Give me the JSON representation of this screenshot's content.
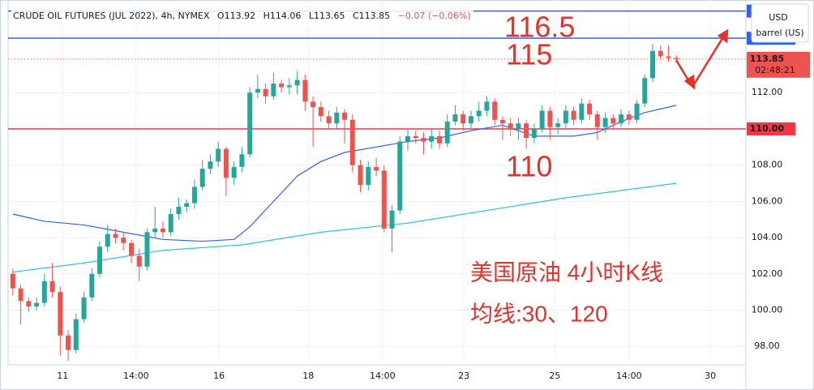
{
  "chart_data": {
    "type": "candlestick",
    "title": "CRUDE OIL FUTURES (JUL 2022), 4h, NYMEX",
    "ohlc": [
      "O113.92",
      "H114.06",
      "L113.65",
      "C113.85"
    ],
    "change": "−0.07 (−0.06%)",
    "currency": "USD",
    "unit": "barrel (US)",
    "up_color": "#26a69a",
    "down_color": "#ef5350",
    "grid": true,
    "candles": [
      [
        102.0,
        102.3,
        100.8,
        101.2
      ],
      [
        101.2,
        101.4,
        99.2,
        100.5
      ],
      [
        100.5,
        100.7,
        99.9,
        100.2
      ],
      [
        100.2,
        100.7,
        100.0,
        100.4
      ],
      [
        100.4,
        102.0,
        100.2,
        101.6
      ],
      [
        101.6,
        102.6,
        100.7,
        101.0
      ],
      [
        101.0,
        101.3,
        97.5,
        98.6
      ],
      [
        98.6,
        98.9,
        97.2,
        97.8
      ],
      [
        97.8,
        99.8,
        97.6,
        99.5
      ],
      [
        99.5,
        101.0,
        99.3,
        100.7
      ],
      [
        100.7,
        102.3,
        100.5,
        102.0
      ],
      [
        102.0,
        103.8,
        101.8,
        103.5
      ],
      [
        103.5,
        104.7,
        103.2,
        104.2
      ],
      [
        104.2,
        104.5,
        103.7,
        104.0
      ],
      [
        104.0,
        104.3,
        103.3,
        103.7
      ],
      [
        103.7,
        103.9,
        102.6,
        103.0
      ],
      [
        103.0,
        103.4,
        101.6,
        102.4
      ],
      [
        102.4,
        104.5,
        102.2,
        104.3
      ],
      [
        104.3,
        105.7,
        104.0,
        104.5
      ],
      [
        104.5,
        104.9,
        104.0,
        104.3
      ],
      [
        104.3,
        105.6,
        104.1,
        105.3
      ],
      [
        105.3,
        106.2,
        105.0,
        105.7
      ],
      [
        105.7,
        106.1,
        105.4,
        105.9
      ],
      [
        105.9,
        107.2,
        105.6,
        106.8
      ],
      [
        106.8,
        108.3,
        106.6,
        107.8
      ],
      [
        107.8,
        108.6,
        107.5,
        108.2
      ],
      [
        108.2,
        109.3,
        107.9,
        108.9
      ],
      [
        108.9,
        109.0,
        106.3,
        107.3
      ],
      [
        107.3,
        108.2,
        106.9,
        107.9
      ],
      [
        107.9,
        109.0,
        107.6,
        108.6
      ],
      [
        108.6,
        112.3,
        108.4,
        112.0
      ],
      [
        112.0,
        113.0,
        111.7,
        112.2
      ],
      [
        112.2,
        112.5,
        111.4,
        111.8
      ],
      [
        111.8,
        113.1,
        111.6,
        112.5
      ],
      [
        112.5,
        112.7,
        112.0,
        112.3
      ],
      [
        112.3,
        112.8,
        111.9,
        112.4
      ],
      [
        112.4,
        113.2,
        111.9,
        112.7
      ],
      [
        112.7,
        113.0,
        111.0,
        111.5
      ],
      [
        111.5,
        111.8,
        109.0,
        111.2
      ],
      [
        111.2,
        111.5,
        110.4,
        110.7
      ],
      [
        110.7,
        111.0,
        110.0,
        110.3
      ],
      [
        110.3,
        111.2,
        110.0,
        110.9
      ],
      [
        110.9,
        111.1,
        109.2,
        110.5
      ],
      [
        110.5,
        110.8,
        107.6,
        108.0
      ],
      [
        108.0,
        108.3,
        106.5,
        106.9
      ],
      [
        106.9,
        108.2,
        106.6,
        107.9
      ],
      [
        107.9,
        108.4,
        107.4,
        107.7
      ],
      [
        107.7,
        108.0,
        104.3,
        104.5
      ],
      [
        104.5,
        105.8,
        103.2,
        105.5
      ],
      [
        105.5,
        109.6,
        105.3,
        109.3
      ],
      [
        109.3,
        110.0,
        108.8,
        109.6
      ],
      [
        109.6,
        109.9,
        109.2,
        109.5
      ],
      [
        109.5,
        109.8,
        108.6,
        109.3
      ],
      [
        109.3,
        110.0,
        108.9,
        109.6
      ],
      [
        109.6,
        109.9,
        108.9,
        109.2
      ],
      [
        109.2,
        110.8,
        109.0,
        110.4
      ],
      [
        110.4,
        111.3,
        110.2,
        110.8
      ],
      [
        110.8,
        111.0,
        109.9,
        110.3
      ],
      [
        110.3,
        111.0,
        110.0,
        110.7
      ],
      [
        110.7,
        111.5,
        110.4,
        111.0
      ],
      [
        111.0,
        111.8,
        110.7,
        111.5
      ],
      [
        111.5,
        111.7,
        110.2,
        110.5
      ],
      [
        110.5,
        110.7,
        109.4,
        110.3
      ],
      [
        110.3,
        110.6,
        109.6,
        110.0
      ],
      [
        110.0,
        110.6,
        109.4,
        110.3
      ],
      [
        110.3,
        110.5,
        108.9,
        109.5
      ],
      [
        109.5,
        110.3,
        109.2,
        110.0
      ],
      [
        110.0,
        111.3,
        109.8,
        111.0
      ],
      [
        111.0,
        111.2,
        109.4,
        110.1
      ],
      [
        110.1,
        110.6,
        109.7,
        110.3
      ],
      [
        110.3,
        111.3,
        110.0,
        111.0
      ],
      [
        111.0,
        111.2,
        110.2,
        110.5
      ],
      [
        110.5,
        111.7,
        110.3,
        111.4
      ],
      [
        111.4,
        111.6,
        110.5,
        110.8
      ],
      [
        110.8,
        111.0,
        109.4,
        110.1
      ],
      [
        110.1,
        110.9,
        109.8,
        110.6
      ],
      [
        110.6,
        110.8,
        110.0,
        110.3
      ],
      [
        110.3,
        111.1,
        110.1,
        110.8
      ],
      [
        110.8,
        111.0,
        110.2,
        110.5
      ],
      [
        110.5,
        111.6,
        110.3,
        111.4
      ],
      [
        111.4,
        113.0,
        111.2,
        112.8
      ],
      [
        112.8,
        114.7,
        112.6,
        114.3
      ],
      [
        114.3,
        114.6,
        113.8,
        114.0
      ],
      [
        114.0,
        114.6,
        113.7,
        113.92
      ],
      [
        113.92,
        114.06,
        113.65,
        113.85
      ]
    ],
    "series": [
      {
        "color": "#2962ff",
        "x": [
          0,
          4,
          9,
          14,
          19,
          24,
          28,
          30,
          33,
          36,
          39,
          42,
          46,
          50,
          54,
          58,
          62,
          66,
          71,
          74,
          77,
          80,
          84
        ],
        "values": [
          105.3,
          104.9,
          104.7,
          104.3,
          103.9,
          103.8,
          103.9,
          104.6,
          106.0,
          107.4,
          108.2,
          108.7,
          109.0,
          109.3,
          109.5,
          109.9,
          110.2,
          109.6,
          109.6,
          109.8,
          110.4,
          110.9,
          111.3
        ]
      },
      {
        "color": "#26c6da",
        "x": [
          0,
          9,
          19,
          29,
          39,
          50,
          60,
          70,
          84
        ],
        "values": [
          102.1,
          102.6,
          103.3,
          103.6,
          104.3,
          104.8,
          105.5,
          106.2,
          107.0
        ]
      }
    ],
    "xlim": [
      -0.6,
      92.8
    ],
    "xticks": [
      {
        "value": 6.3,
        "label": "11"
      },
      {
        "value": 15.6,
        "label": "14:00"
      },
      {
        "value": 26.1,
        "label": "16"
      },
      {
        "value": 37.4,
        "label": "18"
      },
      {
        "value": 46.8,
        "label": "14:00"
      },
      {
        "value": 57.1,
        "label": "23"
      },
      {
        "value": 68.6,
        "label": "25"
      },
      {
        "value": 78.0,
        "label": "14:00"
      },
      {
        "value": 88.3,
        "label": "30"
      }
    ],
    "ylim": [
      96.98,
      117.11
    ],
    "yticks": [
      {
        "value": 98,
        "label": "98.00"
      },
      {
        "value": 100,
        "label": "100.00"
      },
      {
        "value": 102,
        "label": "102.00"
      },
      {
        "value": 104,
        "label": "104.00"
      },
      {
        "value": 106,
        "label": "106.00"
      },
      {
        "value": 108,
        "label": "108.00"
      },
      {
        "value": 110,
        "label": "110.00"
      },
      {
        "value": 112,
        "label": "112.00"
      }
    ],
    "hlines": [
      {
        "value": 116.5,
        "label": "116.50",
        "color": "#2962ff"
      },
      {
        "value": 115,
        "label": "115.00",
        "color": "#2962ff"
      },
      {
        "value": 110,
        "label": "110.00",
        "color": "#f23645"
      }
    ],
    "last_price": {
      "value": 113.85,
      "label": "113.85",
      "countdown": "02:48:21",
      "color": "#ef5350"
    },
    "annotations": [
      "116.5",
      "115",
      "110",
      "美国原油 4小时K线",
      "均线:30、120"
    ]
  }
}
